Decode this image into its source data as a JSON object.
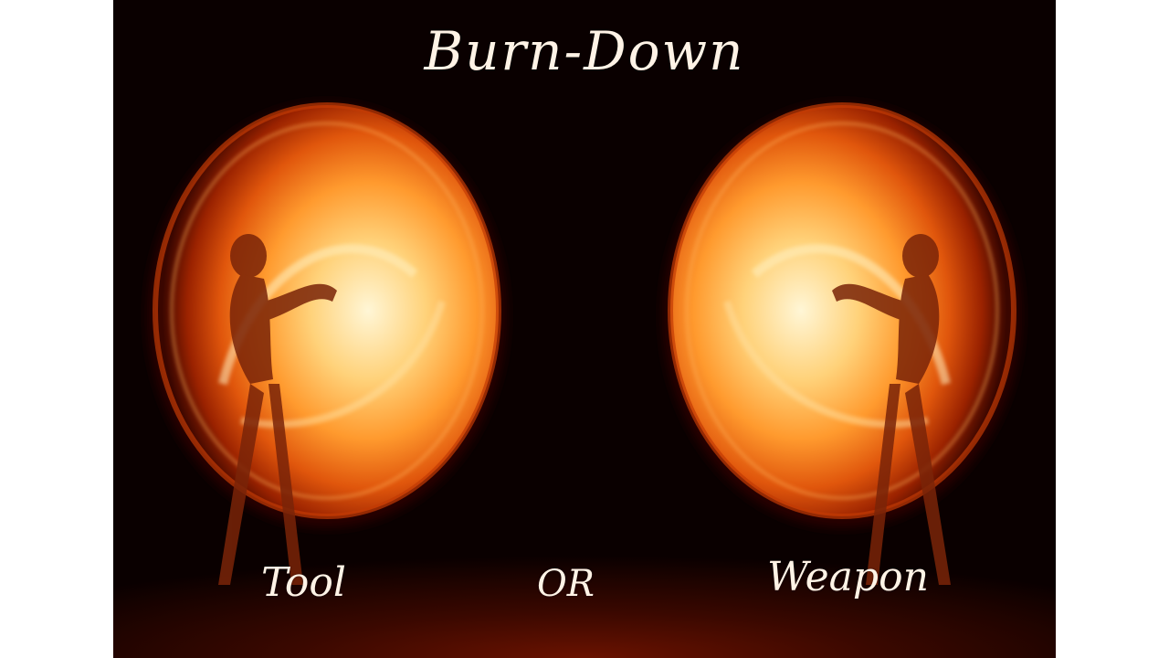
{
  "image": {
    "title": "Burn-Down",
    "left_label": "Tool",
    "center_label": "OR",
    "right_label": "Weapon"
  },
  "colors": {
    "background": "#0a0000",
    "fire_core": "#fff4c8",
    "fire_mid": "#ff9a2e",
    "fire_edge": "#b02a00",
    "text": "#fff3e6"
  }
}
